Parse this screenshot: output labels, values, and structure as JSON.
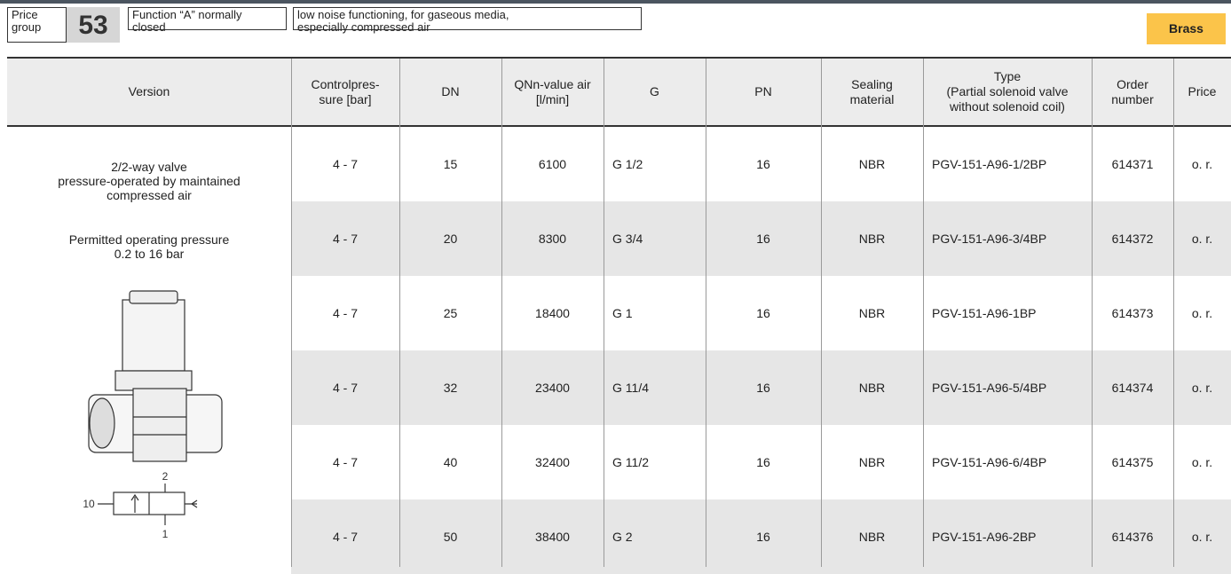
{
  "header": {
    "price_group_label": "Price\ngroup",
    "price_group": "53",
    "function": "Function “A” normally\nclosed",
    "description": "low noise functioning, for gaseous media,\nespecially compressed air",
    "material": "Brass"
  },
  "table": {
    "columns": [
      "Version",
      "Controlpres-\nsure [bar]",
      "DN",
      "QNn-value air\n[l/min]",
      "G",
      "PN",
      "Sealing\nmaterial",
      "Type\n(Partial solenoid valve\nwithout solenoid coil)",
      "Order\nnumber",
      "Price"
    ],
    "version": {
      "text": "2/2-way valve\npressure-operated by maintained\ncompressed air",
      "pressure": "Permitted operating pressure\n0.2 to 16 bar",
      "symbol_labels": [
        "2",
        "10",
        "1"
      ]
    },
    "rows": [
      [
        "4 - 7",
        "15",
        "6100",
        "G 1/2",
        "16",
        "NBR",
        "PGV-151-A96-1/2BP",
        "614371",
        "o. r."
      ],
      [
        "4 - 7",
        "20",
        "8300",
        "G 3/4",
        "16",
        "NBR",
        "PGV-151-A96-3/4BP",
        "614372",
        "o. r."
      ],
      [
        "4 - 7",
        "25",
        "18400",
        "G 1",
        "16",
        "NBR",
        "PGV-151-A96-1BP",
        "614373",
        "o. r."
      ],
      [
        "4 - 7",
        "32",
        "23400",
        "G 11/4",
        "16",
        "NBR",
        "PGV-151-A96-5/4BP",
        "614374",
        "o. r."
      ],
      [
        "4 - 7",
        "40",
        "32400",
        "G 11/2",
        "16",
        "NBR",
        "PGV-151-A96-6/4BP",
        "614375",
        "o. r."
      ],
      [
        "4 - 7",
        "50",
        "38400",
        "G 2",
        "16",
        "NBR",
        "PGV-151-A96-2BP",
        "614376",
        "o. r."
      ]
    ]
  }
}
